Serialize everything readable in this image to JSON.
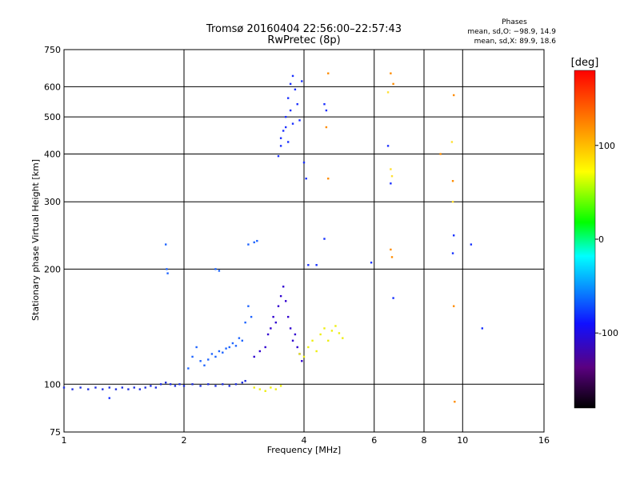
{
  "chart_data": {
    "type": "scatter",
    "title": "Tromsø 20160404 22:56:00–22:57:43",
    "subtitle": "RwPretec (8p)",
    "xlabel": "Frequency [MHz]",
    "ylabel": "Stationary phase Virtual Height [km]",
    "x_scale": "log",
    "y_scale": "log",
    "xlim": [
      1,
      16
    ],
    "ylim": [
      75,
      750
    ],
    "x_ticks": [
      1,
      2,
      4,
      6,
      8,
      10,
      16
    ],
    "y_ticks": [
      75,
      100,
      200,
      300,
      400,
      500,
      600,
      750
    ],
    "grid": true,
    "legend": {
      "title": "Phases",
      "lines": [
        "mean, sd,O: −98.9, 14.9",
        "mean, sd,X: 89.9, 18.6"
      ],
      "placement": "top-right"
    },
    "colorbar": {
      "label": "[deg]",
      "range": [
        -180,
        180
      ],
      "ticks": [
        100,
        0,
        -100
      ],
      "colors": [
        "#000000",
        "#5a0080",
        "#1010ff",
        "#00ffff",
        "#00ff00",
        "#ffff00",
        "#ff8000",
        "#ff0000"
      ]
    },
    "series": [
      {
        "color": "#2030e0",
        "points": [
          [
            1.0,
            98
          ],
          [
            1.05,
            97
          ],
          [
            1.1,
            98
          ],
          [
            1.15,
            97
          ],
          [
            1.2,
            98
          ],
          [
            1.25,
            97
          ],
          [
            1.3,
            98
          ],
          [
            1.35,
            97
          ],
          [
            1.4,
            98
          ],
          [
            1.45,
            97
          ],
          [
            1.5,
            98
          ],
          [
            1.55,
            97
          ],
          [
            1.6,
            98
          ],
          [
            1.65,
            99
          ],
          [
            1.7,
            98
          ],
          [
            1.75,
            100
          ],
          [
            1.8,
            101
          ],
          [
            1.85,
            100
          ],
          [
            1.9,
            99
          ],
          [
            1.95,
            100
          ],
          [
            2.0,
            99
          ],
          [
            2.1,
            100
          ],
          [
            2.2,
            99
          ],
          [
            2.3,
            100
          ],
          [
            2.4,
            99
          ],
          [
            2.5,
            100
          ],
          [
            2.6,
            99
          ],
          [
            2.7,
            100
          ],
          [
            2.8,
            101
          ],
          [
            2.85,
            102
          ]
        ]
      },
      {
        "color": "#1e64ff",
        "points": [
          [
            1.8,
            232
          ],
          [
            1.81,
            200
          ],
          [
            1.82,
            195
          ],
          [
            2.05,
            110
          ],
          [
            2.1,
            118
          ],
          [
            2.15,
            125
          ],
          [
            2.2,
            115
          ],
          [
            2.25,
            112
          ],
          [
            2.3,
            116
          ],
          [
            2.35,
            120
          ],
          [
            2.4,
            118
          ],
          [
            2.45,
            122
          ],
          [
            2.5,
            121
          ],
          [
            2.55,
            124
          ],
          [
            2.6,
            125
          ],
          [
            2.65,
            128
          ],
          [
            2.7,
            126
          ],
          [
            2.75,
            132
          ],
          [
            2.8,
            130
          ],
          [
            2.85,
            145
          ],
          [
            2.9,
            160
          ],
          [
            2.95,
            150
          ],
          [
            2.9,
            232
          ],
          [
            3.0,
            235
          ],
          [
            3.05,
            237
          ],
          [
            2.4,
            200
          ],
          [
            2.45,
            198
          ]
        ]
      },
      {
        "color": "#3000d0",
        "points": [
          [
            3.0,
            118
          ],
          [
            3.1,
            122
          ],
          [
            3.2,
            125
          ],
          [
            3.25,
            135
          ],
          [
            3.3,
            140
          ],
          [
            3.35,
            150
          ],
          [
            3.4,
            145
          ],
          [
            3.45,
            160
          ],
          [
            3.5,
            170
          ],
          [
            3.55,
            180
          ],
          [
            3.6,
            165
          ],
          [
            3.65,
            150
          ],
          [
            3.7,
            140
          ],
          [
            3.75,
            130
          ],
          [
            3.8,
            135
          ],
          [
            3.85,
            125
          ],
          [
            3.9,
            120
          ],
          [
            3.95,
            115
          ]
        ]
      },
      {
        "color": "#1a2fff",
        "points": [
          [
            3.45,
            395
          ],
          [
            3.5,
            420
          ],
          [
            3.55,
            460
          ],
          [
            3.6,
            500
          ],
          [
            3.65,
            560
          ],
          [
            3.7,
            610
          ],
          [
            3.75,
            640
          ],
          [
            3.8,
            590
          ],
          [
            3.85,
            540
          ],
          [
            3.9,
            490
          ],
          [
            3.5,
            440
          ],
          [
            3.6,
            470
          ],
          [
            3.7,
            520
          ],
          [
            3.65,
            430
          ],
          [
            3.75,
            480
          ],
          [
            3.95,
            620
          ],
          [
            4.0,
            380
          ],
          [
            4.05,
            345
          ],
          [
            4.5,
            540
          ],
          [
            4.55,
            520
          ],
          [
            6.5,
            420
          ],
          [
            6.6,
            335
          ]
        ]
      },
      {
        "color": "#eeee10",
        "points": [
          [
            3.0,
            98
          ],
          [
            3.1,
            97
          ],
          [
            3.2,
            96
          ],
          [
            3.3,
            98
          ],
          [
            3.4,
            97
          ],
          [
            3.5,
            99
          ],
          [
            3.9,
            120
          ],
          [
            4.0,
            118
          ],
          [
            4.1,
            125
          ],
          [
            4.2,
            130
          ],
          [
            4.3,
            122
          ],
          [
            4.4,
            135
          ],
          [
            4.5,
            140
          ],
          [
            4.6,
            130
          ],
          [
            4.7,
            138
          ],
          [
            4.8,
            142
          ],
          [
            4.9,
            136
          ],
          [
            5.0,
            132
          ]
        ]
      },
      {
        "color": "#ff8c00",
        "points": [
          [
            4.6,
            345
          ],
          [
            4.55,
            470
          ],
          [
            4.6,
            650
          ],
          [
            6.6,
            650
          ],
          [
            6.7,
            610
          ],
          [
            6.6,
            225
          ],
          [
            6.65,
            215
          ],
          [
            9.5,
            570
          ],
          [
            9.45,
            340
          ],
          [
            9.5,
            160
          ],
          [
            9.55,
            90
          ],
          [
            8.8,
            400
          ]
        ]
      },
      {
        "color": "#ffe030",
        "points": [
          [
            6.5,
            580
          ],
          [
            6.6,
            365
          ],
          [
            6.65,
            350
          ],
          [
            9.4,
            430
          ],
          [
            9.45,
            300
          ]
        ]
      },
      {
        "color": "#1530ff",
        "points": [
          [
            4.5,
            240
          ],
          [
            6.7,
            168
          ],
          [
            9.5,
            245
          ],
          [
            9.45,
            220
          ],
          [
            10.5,
            232
          ],
          [
            4.1,
            205
          ],
          [
            4.3,
            205
          ],
          [
            11.2,
            140
          ],
          [
            5.9,
            208
          ],
          [
            1.3,
            92
          ]
        ]
      }
    ]
  }
}
